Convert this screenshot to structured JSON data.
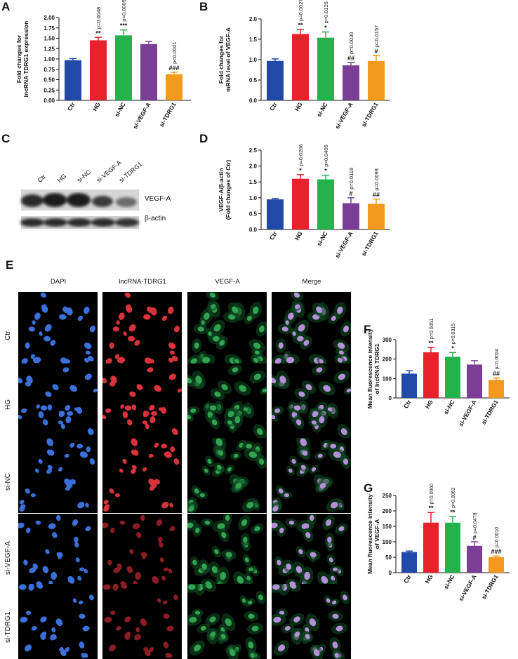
{
  "panels": {
    "A": "A",
    "B": "B",
    "C": "C",
    "D": "D",
    "E": "E",
    "F": "F",
    "G": "G"
  },
  "colors": {
    "Ctr": "#2149a8",
    "HG": "#e8222a",
    "si-NC": "#23b24b",
    "si-VEGF-A": "#7a3e96",
    "si-TDRG1": "#f39a1e"
  },
  "categories": [
    "Ctr",
    "HG",
    "si-NC",
    "si-VEGF-A",
    "si-TDRG1"
  ],
  "chart_data": [
    {
      "panel": "A",
      "type": "bar",
      "ylabel": "Fold changes for lncRNA TDRG1 expression",
      "ylim": [
        0,
        2.0
      ],
      "yticks": [
        "0.00",
        "0.25",
        "0.50",
        "0.75",
        "1.00",
        "1.25",
        "1.50",
        "1.75",
        "2.00"
      ],
      "values": [
        0.97,
        1.45,
        1.57,
        1.36,
        0.63
      ],
      "errors": [
        0.04,
        0.07,
        0.13,
        0.06,
        0.05
      ],
      "pvalues": [
        "",
        "p=0.0048",
        "p=0.0005",
        "",
        "p<0.0001"
      ],
      "stars": [
        "",
        "**",
        "***",
        "",
        "###"
      ]
    },
    {
      "panel": "B",
      "type": "bar",
      "ylabel": "Fold changes for mRNA level of VEGF-A",
      "ylim": [
        0,
        2.0
      ],
      "yticks": [
        "0.0",
        "0.5",
        "1.0",
        "1.5",
        "2.0"
      ],
      "values": [
        0.97,
        1.63,
        1.54,
        0.86,
        0.97
      ],
      "errors": [
        0.05,
        0.11,
        0.14,
        0.07,
        0.13
      ],
      "pvalues": [
        "",
        "p=0.0027",
        "p=0.0126",
        "p=0.0030",
        "p=0.0157"
      ],
      "stars": [
        "",
        "**",
        "*",
        "##",
        "#"
      ]
    },
    {
      "panel": "D",
      "type": "bar",
      "ylabel": "VEGF-A/β-actin (Fold changes of Ctr)",
      "ylim": [
        0,
        2.5
      ],
      "yticks": [
        "0.0",
        "0.5",
        "1.0",
        "1.5",
        "2.0",
        "2.5"
      ],
      "values": [
        0.95,
        1.6,
        1.58,
        0.83,
        0.81
      ],
      "errors": [
        0.03,
        0.13,
        0.13,
        0.17,
        0.15
      ],
      "pvalues": [
        "",
        "p=0.0266",
        "p=0.0405",
        "p=0.0118",
        "p=0.0098"
      ],
      "stars": [
        "",
        "*",
        "*",
        "#",
        "##"
      ]
    },
    {
      "panel": "F",
      "type": "bar",
      "ylabel": "Mean fluorescence intensity of lncRNA TDRG1",
      "ylim": [
        0,
        300
      ],
      "yticks": [
        "0",
        "100",
        "200",
        "300"
      ],
      "values": [
        125,
        235,
        212,
        172,
        93
      ],
      "errors": [
        15,
        25,
        22,
        20,
        10
      ],
      "pvalues": [
        "",
        "p=0.0051",
        "p=0.0315",
        "",
        "p=0.0024"
      ],
      "stars": [
        "",
        "**",
        "*",
        "",
        "##"
      ]
    },
    {
      "panel": "G",
      "type": "bar",
      "ylabel": "Mean fluorescence intensity of VEGF-A",
      "ylim": [
        0,
        250
      ],
      "yticks": [
        "0",
        "50",
        "100",
        "150",
        "200",
        "250"
      ],
      "values": [
        67,
        162,
        162,
        87,
        50
      ],
      "errors": [
        3,
        33,
        20,
        13,
        4
      ],
      "pvalues": [
        "",
        "p=0.0060",
        "p=0.0062",
        "p=0.0478",
        "p=0.0010"
      ],
      "stars": [
        "",
        "**",
        "**",
        "#",
        "###"
      ]
    }
  ],
  "blot": {
    "lanes": [
      "Ctr",
      "HG",
      "si-NC",
      "si-VEGF-A",
      "si-TDRG1"
    ],
    "bands": [
      "VEGF-A",
      "β-actin"
    ]
  },
  "microscopy": {
    "columns": [
      "DAPI",
      "lncRNA-TDRG1",
      "VEGF-A",
      "Merge"
    ],
    "rows": [
      "Ctr",
      "HG",
      "si-NC",
      "si-VEGF-A",
      "si-TDRG1"
    ]
  }
}
